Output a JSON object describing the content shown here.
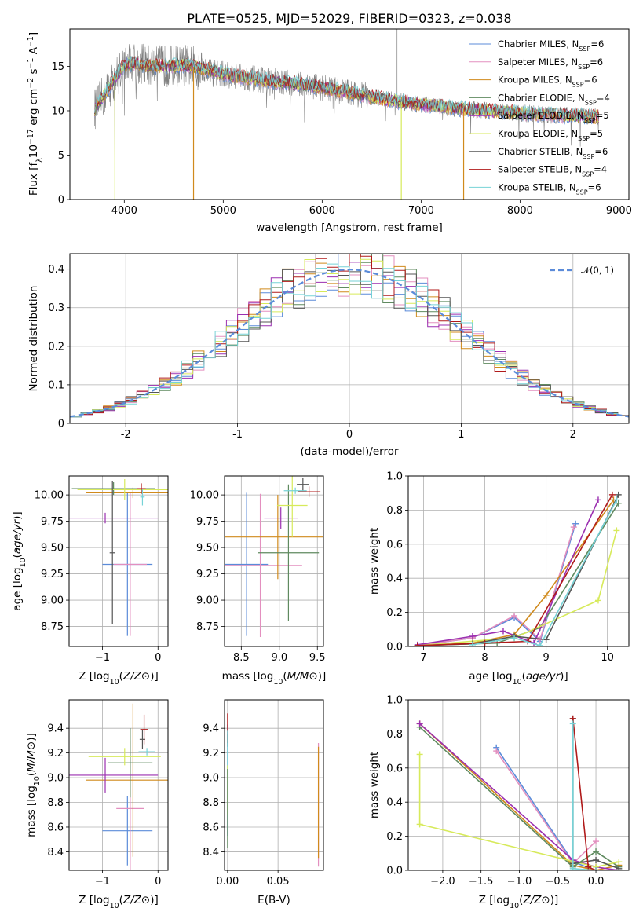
{
  "title": "PLATE=0525, MJD=52029, FIBERID=0323, z=0.038",
  "colors": [
    "#5b8bd9",
    "#e38fbf",
    "#d08a1c",
    "#5f8a5f",
    "#9b2fb0",
    "#d7ea5b",
    "#555555",
    "#b01a1a",
    "#76d2d6"
  ],
  "models": [
    "Chabrier MILES, N_SSP=6",
    "Salpeter MILES, N_SSP=6",
    "Kroupa MILES, N_SSP=6",
    "Chabrier ELODIE, N_SSP=4",
    "Salpeter ELODIE, N_SSP=5",
    "Kroupa ELODIE, N_SSP=5",
    "Chabrier STELIB, N_SSP=6",
    "Salpeter STELIB, N_SSP=4",
    "Kroupa STELIB, N_SSP=6"
  ],
  "chart_data": [
    {
      "id": "spectrum",
      "type": "line",
      "xlabel": "wavelength [Angstrom, rest frame]",
      "ylabel": "Flux [f_λ 10^-17 erg cm^-2 s^-1 A^-1]",
      "xlim": [
        3450,
        9100
      ],
      "ylim": [
        0,
        19.2
      ],
      "xticks": [
        4000,
        5000,
        6000,
        7000,
        8000,
        9000
      ],
      "yticks": [
        0,
        5,
        10,
        15
      ],
      "legend_loc": "upper right",
      "continuum": [
        [
          3700,
          10.2
        ],
        [
          3800,
          11.8
        ],
        [
          3900,
          13.5
        ],
        [
          4000,
          15.2
        ],
        [
          4100,
          15.3
        ],
        [
          4300,
          15.0
        ],
        [
          4600,
          15.1
        ],
        [
          4800,
          14.8
        ],
        [
          5000,
          14.1
        ],
        [
          5300,
          13.6
        ],
        [
          5600,
          13.2
        ],
        [
          5900,
          12.8
        ],
        [
          6200,
          12.2
        ],
        [
          6500,
          11.6
        ],
        [
          6800,
          11.0
        ],
        [
          7100,
          10.6
        ],
        [
          7400,
          10.2
        ],
        [
          7800,
          9.9
        ],
        [
          8200,
          9.6
        ],
        [
          8600,
          9.4
        ],
        [
          8800,
          9.3
        ]
      ],
      "notes": "grey observed spectrum with 9 overlapping model fits"
    },
    {
      "id": "residuals",
      "type": "histogram",
      "xlabel": "(data-model)/error",
      "ylabel": "Normed distribution",
      "xlim": [
        -2.5,
        2.5
      ],
      "ylim": [
        0,
        0.44
      ],
      "xticks": [
        -2,
        -1,
        0,
        1,
        2
      ],
      "yticks": [
        0.0,
        0.1,
        0.2,
        0.3,
        0.4
      ],
      "reference_label": "𝒩(0, 1)",
      "reference_curve": "normal pdf mean 0 sigma 1"
    },
    {
      "id": "age-vs-Z",
      "type": "errorbar",
      "xlabel": "Z [log10(Z/Z⊙)]",
      "ylabel": "age  [log10(age/yr)]",
      "xlim": [
        -1.6,
        0.18
      ],
      "ylim": [
        8.56,
        10.18
      ],
      "xticks": [
        -1,
        0
      ],
      "xticklabels": [
        "−1",
        "0"
      ],
      "yticks": [
        8.75,
        9.0,
        9.25,
        9.5,
        9.75,
        10.0
      ],
      "points": [
        {
          "m": 0,
          "x": -0.55,
          "xe": 0.45,
          "y": 9.34,
          "ye": 0.68
        },
        {
          "m": 1,
          "x": -0.5,
          "xe": 0.3,
          "y": 9.34,
          "ye": 0.68
        },
        {
          "m": 2,
          "x": -0.45,
          "xe": 0.85,
          "y": 10.02,
          "ye": 0.05
        },
        {
          "m": 3,
          "x": -0.8,
          "xe": 0.75,
          "y": 10.06,
          "ye": 0.06
        },
        {
          "m": 4,
          "x": -0.95,
          "xe": 0.95,
          "y": 9.78,
          "ye": 0.05
        },
        {
          "m": 5,
          "x": -0.6,
          "xe": 0.85,
          "y": 10.05,
          "ye": 0.1
        },
        {
          "m": 6,
          "x": -0.82,
          "xe": 0.05,
          "y": 9.45,
          "ye": 0.68
        },
        {
          "m": 7,
          "x": -0.3,
          "xe": 0.08,
          "y": 10.06,
          "ye": 0.05
        },
        {
          "m": 8,
          "x": -0.28,
          "xe": 0.04,
          "y": 9.98,
          "ye": 0.08
        }
      ]
    },
    {
      "id": "age-vs-mass",
      "type": "errorbar",
      "xlabel": "mass [log10(M/M⊙)]",
      "ylabel": "",
      "xlim": [
        8.28,
        9.58
      ],
      "ylim": [
        8.56,
        10.18
      ],
      "xticks": [
        8.5,
        9.0,
        9.5
      ],
      "xticklabels": [
        "8.5",
        "9.0",
        "9.5"
      ],
      "yticks": [
        8.75,
        9.0,
        9.25,
        9.5,
        9.75,
        10.0
      ],
      "points": [
        {
          "m": 0,
          "x": 8.57,
          "xe": 0.28,
          "y": 9.34,
          "ye": 0.68
        },
        {
          "m": 1,
          "x": 8.75,
          "xe": 0.55,
          "y": 9.33,
          "ye": 0.68
        },
        {
          "m": 2,
          "x": 8.98,
          "xe": 0.7,
          "y": 9.6,
          "ye": 0.4
        },
        {
          "m": 3,
          "x": 9.12,
          "xe": 0.4,
          "y": 9.45,
          "ye": 0.65
        },
        {
          "m": 4,
          "x": 9.02,
          "xe": 0.22,
          "y": 9.78,
          "ye": 0.1
        },
        {
          "m": 5,
          "x": 9.17,
          "xe": 0.2,
          "y": 9.9,
          "ye": 0.3
        },
        {
          "m": 6,
          "x": 9.31,
          "xe": 0.08,
          "y": 10.1,
          "ye": 0.06
        },
        {
          "m": 7,
          "x": 9.39,
          "xe": 0.15,
          "y": 10.03,
          "ye": 0.05
        },
        {
          "m": 8,
          "x": 9.21,
          "xe": 0.15,
          "y": 10.04,
          "ye": 0.03
        }
      ]
    },
    {
      "id": "weight-vs-age",
      "type": "line",
      "xlabel": "age  [log10(age/yr)]",
      "ylabel": "mass weight",
      "xlim": [
        6.75,
        10.35
      ],
      "ylim": [
        0,
        1.0
      ],
      "xticks": [
        7,
        8,
        9,
        10
      ],
      "yticks": [
        0.0,
        0.2,
        0.4,
        0.6,
        0.8,
        1.0
      ],
      "series": [
        {
          "m": 0,
          "pts": [
            [
              6.9,
              0.005
            ],
            [
              7.8,
              0.05
            ],
            [
              8.48,
              0.17
            ],
            [
              8.9,
              0.03
            ],
            [
              9.48,
              0.72
            ]
          ]
        },
        {
          "m": 1,
          "pts": [
            [
              6.9,
              0.005
            ],
            [
              7.8,
              0.05
            ],
            [
              8.48,
              0.18
            ],
            [
              8.9,
              0.04
            ],
            [
              9.45,
              0.7
            ]
          ]
        },
        {
          "m": 2,
          "pts": [
            [
              6.9,
              0.005
            ],
            [
              7.8,
              0.02
            ],
            [
              8.48,
              0.07
            ],
            [
              9.0,
              0.3
            ],
            [
              10.1,
              0.86
            ]
          ]
        },
        {
          "m": 3,
          "pts": [
            [
              6.9,
              0.005
            ],
            [
              8.2,
              0.02
            ],
            [
              8.9,
              0.11
            ],
            [
              10.18,
              0.84
            ]
          ]
        },
        {
          "m": 4,
          "pts": [
            [
              6.9,
              0.01
            ],
            [
              7.8,
              0.06
            ],
            [
              8.3,
              0.09
            ],
            [
              8.8,
              0.02
            ],
            [
              9.85,
              0.86
            ]
          ]
        },
        {
          "m": 5,
          "pts": [
            [
              6.9,
              0.005
            ],
            [
              8.48,
              0.05
            ],
            [
              9.85,
              0.27
            ],
            [
              10.15,
              0.68
            ]
          ]
        },
        {
          "m": 6,
          "pts": [
            [
              6.9,
              0.005
            ],
            [
              7.8,
              0.015
            ],
            [
              8.48,
              0.06
            ],
            [
              9.0,
              0.04
            ],
            [
              10.18,
              0.89
            ]
          ]
        },
        {
          "m": 7,
          "pts": [
            [
              6.9,
              0.005
            ],
            [
              8.0,
              0.02
            ],
            [
              8.7,
              0.03
            ],
            [
              10.08,
              0.89
            ]
          ]
        },
        {
          "m": 8,
          "pts": [
            [
              7.8,
              0.01
            ],
            [
              8.48,
              0.05
            ],
            [
              8.9,
              0.005
            ],
            [
              10.15,
              0.86
            ]
          ]
        }
      ]
    },
    {
      "id": "mass-vs-Z",
      "type": "errorbar",
      "xlabel": "Z [log10(Z/Z⊙)]",
      "ylabel": "mass [log10(M/M⊙)]",
      "xlim": [
        -1.6,
        0.18
      ],
      "ylim": [
        8.25,
        9.63
      ],
      "xticks": [
        -1,
        0
      ],
      "xticklabels": [
        "−1",
        "0"
      ],
      "yticks": [
        8.4,
        8.6,
        8.8,
        9.0,
        9.2,
        9.4
      ],
      "points": [
        {
          "m": 0,
          "x": -0.55,
          "xe": 0.45,
          "y": 8.57,
          "ye": 0.28
        },
        {
          "m": 1,
          "x": -0.5,
          "xe": 0.25,
          "y": 8.75,
          "ye": 0.55
        },
        {
          "m": 2,
          "x": -0.45,
          "xe": 0.85,
          "y": 8.98,
          "ye": 0.62
        },
        {
          "m": 3,
          "x": -0.5,
          "xe": 0.4,
          "y": 9.12,
          "ye": 0.28
        },
        {
          "m": 4,
          "x": -0.95,
          "xe": 0.95,
          "y": 9.02,
          "ye": 0.14
        },
        {
          "m": 5,
          "x": -0.6,
          "xe": 0.65,
          "y": 9.17,
          "ye": 0.07
        },
        {
          "m": 6,
          "x": -0.28,
          "xe": 0.05,
          "y": 9.31,
          "ye": 0.08
        },
        {
          "m": 7,
          "x": -0.25,
          "xe": 0.07,
          "y": 9.39,
          "ye": 0.12
        },
        {
          "m": 8,
          "x": -0.2,
          "xe": 0.15,
          "y": 9.21,
          "ye": 0.03
        }
      ]
    },
    {
      "id": "mass-vs-ebv",
      "type": "errorbar",
      "xlabel": "E(B-V)",
      "ylabel": "",
      "xlim": [
        -0.003,
        0.095
      ],
      "ylim": [
        8.25,
        9.63
      ],
      "xticks": [
        0.0,
        0.05
      ],
      "xticklabels": [
        "0.00",
        "0.05"
      ],
      "yticks": [
        8.4,
        8.6,
        8.8,
        9.0,
        9.2,
        9.4
      ],
      "points": [
        {
          "m": 0,
          "x": 0.0,
          "xe": 0,
          "y": 8.98,
          "ye": 0.45
        },
        {
          "m": 6,
          "x": 0.0,
          "xe": 0,
          "y": 9.3,
          "ye": 0.05
        },
        {
          "m": 7,
          "x": 0.0,
          "xe": 0,
          "y": 9.4,
          "ye": 0.12
        },
        {
          "m": 8,
          "x": 0.0,
          "xe": 0,
          "y": 9.2,
          "ye": 0.18
        },
        {
          "m": 5,
          "x": 0.0,
          "xe": 0,
          "y": 8.9,
          "ye": 0.2
        },
        {
          "m": 3,
          "x": 0.0,
          "xe": 0,
          "y": 8.75,
          "ye": 0.32
        },
        {
          "m": 1,
          "x": 0.09,
          "xe": 0,
          "y": 8.78,
          "ye": 0.5
        },
        {
          "m": 2,
          "x": 0.09,
          "xe": 0,
          "y": 8.8,
          "ye": 0.45
        }
      ]
    },
    {
      "id": "weight-vs-Z",
      "type": "line",
      "xlabel": "Z [log10(Z/Z⊙)]",
      "ylabel": "mass weight",
      "xlim": [
        -2.45,
        0.43
      ],
      "ylim": [
        0,
        1.0
      ],
      "xticks": [
        -2.0,
        -1.5,
        -1.0,
        -0.5,
        0.0
      ],
      "xticklabels": [
        "−2.0",
        "−1.5",
        "−1.0",
        "−0.5",
        "0.0"
      ],
      "yticks": [
        0.0,
        0.2,
        0.4,
        0.6,
        0.8,
        1.0
      ],
      "series": [
        {
          "m": 0,
          "pts": [
            [
              -1.3,
              0.72
            ],
            [
              -0.3,
              0.05
            ],
            [
              0.0,
              0.0
            ]
          ]
        },
        {
          "m": 1,
          "pts": [
            [
              -1.3,
              0.7
            ],
            [
              -0.3,
              0.04
            ],
            [
              0.0,
              0.17
            ]
          ]
        },
        {
          "m": 2,
          "pts": [
            [
              -2.3,
              0.86
            ],
            [
              -0.3,
              0.03
            ],
            [
              0.0,
              0.0
            ],
            [
              0.3,
              0.03
            ]
          ]
        },
        {
          "m": 3,
          "pts": [
            [
              -2.3,
              0.84
            ],
            [
              -0.3,
              0.02
            ],
            [
              0.0,
              0.11
            ],
            [
              0.3,
              0.02
            ]
          ]
        },
        {
          "m": 4,
          "pts": [
            [
              -2.3,
              0.86
            ],
            [
              -0.3,
              0.06
            ],
            [
              0.0,
              0.02
            ],
            [
              0.3,
              0.0
            ]
          ]
        },
        {
          "m": 5,
          "pts": [
            [
              -2.3,
              0.68
            ],
            [
              -2.3,
              0.27
            ],
            [
              0.0,
              0.02
            ],
            [
              0.3,
              0.05
            ]
          ]
        },
        {
          "m": 6,
          "pts": [
            [
              -0.3,
              0.89
            ],
            [
              -0.3,
              0.04
            ],
            [
              0.0,
              0.06
            ],
            [
              0.3,
              0.01
            ]
          ]
        },
        {
          "m": 7,
          "pts": [
            [
              -0.3,
              0.89
            ],
            [
              -0.1,
              0.02
            ],
            [
              0.0,
              0.0
            ]
          ]
        },
        {
          "m": 8,
          "pts": [
            [
              -0.3,
              0.86
            ],
            [
              -0.3,
              0.01
            ],
            [
              0.0,
              0.0
            ]
          ]
        }
      ]
    }
  ]
}
